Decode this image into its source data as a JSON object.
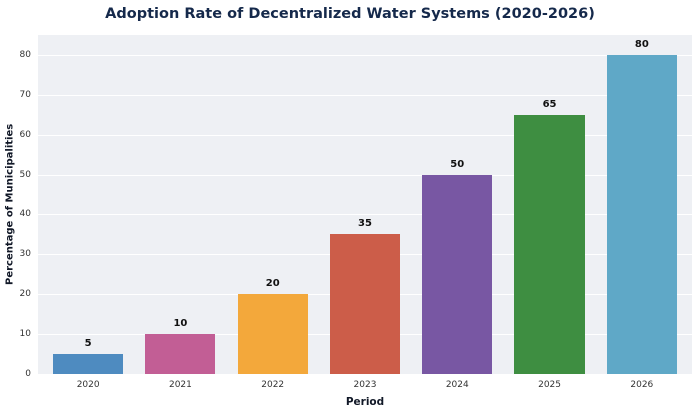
{
  "chart_data": {
    "type": "bar",
    "title": "Adoption Rate of Decentralized Water Systems (2020-2026)",
    "xlabel": "Period",
    "ylabel": "Percentage of Municipalities",
    "categories": [
      "2020",
      "2021",
      "2022",
      "2023",
      "2024",
      "2025",
      "2026"
    ],
    "values": [
      5,
      10,
      20,
      35,
      50,
      65,
      80
    ],
    "bar_colors": [
      "#4e8bc0",
      "#c25e95",
      "#f3a83b",
      "#cc5d49",
      "#7857a3",
      "#3e8e41",
      "#5fa8c7"
    ],
    "yticks": [
      0,
      10,
      20,
      30,
      40,
      50,
      60,
      70,
      80
    ],
    "ylim": [
      0,
      85
    ],
    "grid": true,
    "legend": "none",
    "plot_background": "#eef0f4",
    "title_color": "#15294b"
  }
}
